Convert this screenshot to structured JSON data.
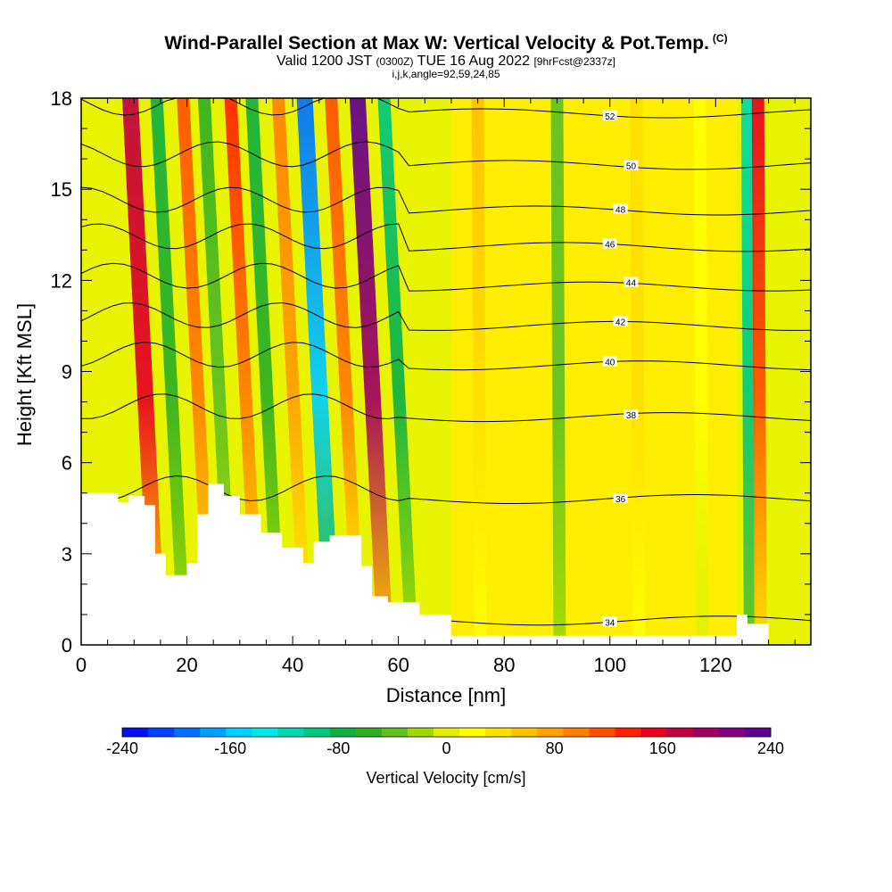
{
  "title_main": "Wind-Parallel Section at Max W: Vertical Velocity & Pot.Temp.",
  "title_copyright": "(C)",
  "subtitle_valid": "Valid 1200 JST",
  "subtitle_utc": "(0300Z)",
  "subtitle_date": "TUE 16 Aug 2022",
  "subtitle_fcst": "[9hrFcst@2337z]",
  "subtitle_indices": "i,j,k,angle=92,59,24,85",
  "colorbar_label": "Vertical Velocity [cm/s]",
  "chart_data": {
    "type": "heatmap",
    "xlabel": "Distance [nm]",
    "ylabel": "Height [Kft MSL]",
    "xlim": [
      0,
      138
    ],
    "ylim": [
      0,
      18
    ],
    "x_ticks": [
      0,
      20,
      40,
      60,
      80,
      100,
      120
    ],
    "y_ticks": [
      0,
      3,
      6,
      9,
      12,
      15,
      18
    ],
    "colorbar": {
      "label": "Vertical Velocity [cm/s]",
      "range": [
        -240,
        240
      ],
      "tick_labels": [
        "-240",
        "-160",
        "-80",
        "0",
        "80",
        "160",
        "240"
      ],
      "colors": [
        "#0010f0",
        "#0040ff",
        "#0070ff",
        "#00a0ff",
        "#00d0ff",
        "#00e8e8",
        "#00d8b0",
        "#00c880",
        "#10b040",
        "#30b020",
        "#60c020",
        "#a0d800",
        "#e0f000",
        "#ffff00",
        "#ffe000",
        "#ffc000",
        "#ffa000",
        "#ff8000",
        "#ff5000",
        "#ff2000",
        "#e80020",
        "#c00040",
        "#a00060",
        "#800080",
        "#600090"
      ]
    },
    "velocity_bands": [
      {
        "x_center": 14,
        "value": 180
      },
      {
        "x_center": 19,
        "value": -80
      },
      {
        "x_center": 24,
        "value": 120
      },
      {
        "x_center": 28,
        "value": -60
      },
      {
        "x_center": 33,
        "value": 130
      },
      {
        "x_center": 37,
        "value": -80
      },
      {
        "x_center": 42,
        "value": 90
      },
      {
        "x_center": 47,
        "value": -200
      },
      {
        "x_center": 52,
        "value": 110
      },
      {
        "x_center": 57,
        "value": 230
      },
      {
        "x_center": 62,
        "value": -90
      },
      {
        "x_center": 75,
        "value": 50
      },
      {
        "x_center": 90,
        "value": -40
      },
      {
        "x_center": 105,
        "value": 40
      },
      {
        "x_center": 117,
        "value": 20
      },
      {
        "x_center": 126,
        "value": -120
      },
      {
        "x_center": 128,
        "value": 150
      }
    ],
    "terrain_profile": [
      [
        0,
        5.0
      ],
      [
        7,
        5.0
      ],
      [
        7,
        4.7
      ],
      [
        9,
        4.7
      ],
      [
        9,
        4.9
      ],
      [
        12,
        4.9
      ],
      [
        12,
        4.6
      ],
      [
        14,
        4.6
      ],
      [
        14,
        3.0
      ],
      [
        16,
        3.0
      ],
      [
        16,
        2.3
      ],
      [
        20,
        2.3
      ],
      [
        20,
        2.7
      ],
      [
        22,
        2.7
      ],
      [
        22,
        4.3
      ],
      [
        24,
        4.3
      ],
      [
        24,
        5.3
      ],
      [
        27,
        5.3
      ],
      [
        27,
        4.9
      ],
      [
        30,
        4.9
      ],
      [
        30,
        4.3
      ],
      [
        34,
        4.3
      ],
      [
        34,
        3.7
      ],
      [
        38,
        3.7
      ],
      [
        38,
        3.2
      ],
      [
        42,
        3.2
      ],
      [
        42,
        2.7
      ],
      [
        44,
        2.7
      ],
      [
        44,
        3.4
      ],
      [
        47,
        3.4
      ],
      [
        47,
        3.6
      ],
      [
        53,
        3.6
      ],
      [
        53,
        2.6
      ],
      [
        55,
        2.6
      ],
      [
        55,
        1.6
      ],
      [
        58,
        1.6
      ],
      [
        58,
        1.4
      ],
      [
        64,
        1.4
      ],
      [
        64,
        1.0
      ],
      [
        70,
        1.0
      ],
      [
        70,
        0.3
      ],
      [
        124,
        0.3
      ],
      [
        124,
        1.0
      ],
      [
        126,
        1.0
      ],
      [
        126,
        0.7
      ],
      [
        130,
        0.7
      ],
      [
        130,
        0
      ],
      [
        138,
        0
      ]
    ],
    "isentropes": [
      {
        "label": "34",
        "level": 0.8
      },
      {
        "label": "36",
        "level": 4.8
      },
      {
        "label": "38",
        "level": 7.5
      },
      {
        "label": "40",
        "level": 9.2
      },
      {
        "label": "42",
        "level": 10.5
      },
      {
        "label": "44",
        "level": 11.8
      },
      {
        "label": "46",
        "level": 13.1
      },
      {
        "label": "48",
        "level": 14.3
      },
      {
        "label": "50",
        "level": 15.8
      },
      {
        "label": "52",
        "level": 17.5
      }
    ]
  }
}
